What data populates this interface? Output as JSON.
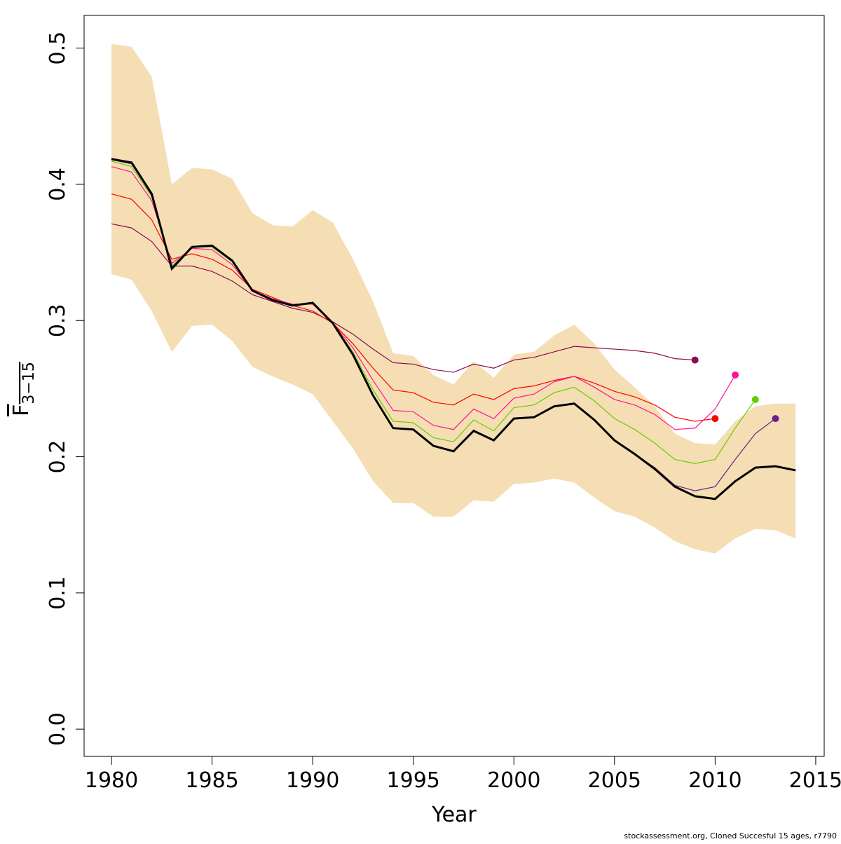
{
  "chart_data": {
    "type": "line",
    "xlabel": "Year",
    "ylabel": "F",
    "ylabel_sub": "3−15",
    "footnote": "stockassessment.org, Cloned Succesful 15 ages, r7790",
    "x": [
      1980,
      1981,
      1982,
      1983,
      1984,
      1985,
      1986,
      1987,
      1988,
      1989,
      1990,
      1991,
      1992,
      1993,
      1994,
      1995,
      1996,
      1997,
      1998,
      1999,
      2000,
      2001,
      2002,
      2003,
      2004,
      2005,
      2006,
      2007,
      2008,
      2009,
      2010,
      2011,
      2012,
      2013,
      2014
    ],
    "xlim": [
      1978.64,
      2015.42
    ],
    "ylim": [
      -0.02,
      0.524
    ],
    "xticks": [
      1980,
      1985,
      1990,
      1995,
      2000,
      2005,
      2010,
      2015
    ],
    "yticks": [
      {
        "value": 0,
        "label": "0.0"
      },
      0.1,
      0.2,
      0.3,
      0.4,
      0.5
    ],
    "band": {
      "color": "#f5deb3",
      "upper": [
        0.503,
        0.501,
        0.479,
        0.4,
        0.412,
        0.411,
        0.404,
        0.379,
        0.37,
        0.369,
        0.381,
        0.372,
        0.345,
        0.314,
        0.276,
        0.274,
        0.26,
        0.253,
        0.27,
        0.258,
        0.275,
        0.277,
        0.289,
        0.297,
        0.283,
        0.264,
        0.251,
        0.237,
        0.217,
        0.21,
        0.209,
        0.226,
        0.237,
        0.239,
        0.239
      ],
      "lower": [
        0.334,
        0.33,
        0.307,
        0.277,
        0.296,
        0.297,
        0.285,
        0.266,
        0.259,
        0.253,
        0.246,
        0.226,
        0.206,
        0.182,
        0.166,
        0.166,
        0.156,
        0.156,
        0.168,
        0.167,
        0.18,
        0.181,
        0.184,
        0.181,
        0.17,
        0.16,
        0.156,
        0.148,
        0.138,
        0.132,
        0.129,
        0.14,
        0.147,
        0.146,
        0.14
      ]
    },
    "series": [
      {
        "color": "#8b0a50",
        "values": [
          0.371,
          0.368,
          0.358,
          0.34,
          0.34,
          0.336,
          0.329,
          0.319,
          0.314,
          0.309,
          0.306,
          0.299,
          0.29,
          0.279,
          0.269,
          0.268,
          0.264,
          0.262,
          0.268,
          0.265,
          0.271,
          0.273,
          0.277,
          0.281,
          0.28,
          0.279,
          0.278,
          0.276,
          0.272,
          0.271,
          null,
          null,
          null,
          null,
          null
        ]
      },
      {
        "color": "#ff0000",
        "values": [
          0.393,
          0.389,
          0.374,
          0.345,
          0.349,
          0.345,
          0.337,
          0.323,
          0.317,
          0.311,
          0.307,
          0.298,
          0.283,
          0.265,
          0.249,
          0.247,
          0.24,
          0.238,
          0.246,
          0.242,
          0.25,
          0.252,
          0.256,
          0.259,
          0.254,
          0.248,
          0.244,
          0.238,
          0.229,
          0.226,
          0.228,
          null,
          null,
          null,
          null
        ]
      },
      {
        "color": "#ff1493",
        "values": [
          0.413,
          0.409,
          0.388,
          0.342,
          0.353,
          0.352,
          0.341,
          0.322,
          0.316,
          0.312,
          0.312,
          0.298,
          0.28,
          0.256,
          0.234,
          0.233,
          0.223,
          0.22,
          0.235,
          0.228,
          0.243,
          0.246,
          0.255,
          0.259,
          0.251,
          0.242,
          0.238,
          0.231,
          0.22,
          0.221,
          0.235,
          0.26,
          null,
          null,
          null
        ]
      },
      {
        "color": "#66cd00",
        "values": [
          0.417,
          0.413,
          0.391,
          0.34,
          0.354,
          0.354,
          0.343,
          0.322,
          0.315,
          0.311,
          0.313,
          0.298,
          0.277,
          0.249,
          0.226,
          0.225,
          0.214,
          0.211,
          0.227,
          0.219,
          0.236,
          0.238,
          0.247,
          0.251,
          0.241,
          0.228,
          0.22,
          0.21,
          0.198,
          0.195,
          0.198,
          0.221,
          0.242,
          null,
          null
        ]
      },
      {
        "color": "#68228b",
        "values": [
          0.418,
          0.415,
          0.392,
          0.339,
          0.354,
          0.355,
          0.344,
          0.322,
          0.315,
          0.311,
          0.313,
          0.298,
          0.275,
          0.245,
          0.221,
          0.22,
          0.208,
          0.204,
          0.219,
          0.212,
          0.228,
          0.229,
          0.237,
          0.239,
          0.227,
          0.212,
          0.202,
          0.192,
          0.179,
          0.175,
          0.178,
          0.198,
          0.217,
          0.228,
          null
        ]
      },
      {
        "color": "#000000",
        "values": [
          0.4186,
          0.416,
          0.393,
          0.338,
          0.354,
          0.355,
          0.344,
          0.322,
          0.315,
          0.311,
          0.313,
          0.298,
          0.275,
          0.245,
          0.221,
          0.22,
          0.208,
          0.204,
          0.219,
          0.212,
          0.228,
          0.229,
          0.237,
          0.239,
          0.227,
          0.212,
          0.202,
          0.191,
          0.178,
          0.171,
          0.169,
          0.182,
          0.192,
          0.193,
          0.19
        ]
      }
    ]
  }
}
